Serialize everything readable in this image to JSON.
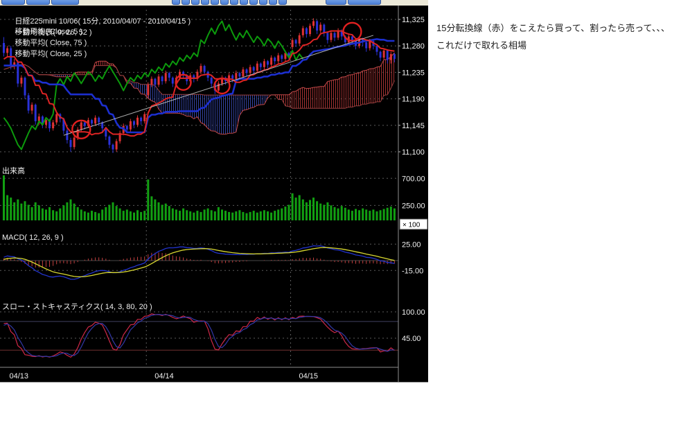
{
  "chart_header": {
    "title": "日経225mini 10/06( 15分, 2010/04/07 - 2010/04/15 )",
    "indicator": "一目均衡表( 9, 26, 52 )",
    "legend": [
      "移動平均( Close, 5 )",
      "移動平均( Close, 75 )",
      "移動平均( Close, 25 )"
    ]
  },
  "note": {
    "line1": "15分転換線（赤）をこえたら買って、割ったら売って、、、",
    "line2": "これだけで取れる相場"
  },
  "chart_data": {
    "type": "candlestick",
    "title": "日経225mini 10/06( 15分, 2010/04/07 - 2010/04/15 )",
    "overlays": [
      "一目均衡表( 9, 26, 52 )",
      "移動平均( Close, 5 )",
      "移動平均( Close, 75 )",
      "移動平均( Close, 25 )"
    ],
    "x_labels": [
      "04/13",
      "04/14",
      "04/15"
    ],
    "price_axis": [
      11325,
      11280,
      11235,
      11190,
      11145,
      11100
    ],
    "history_bars": 26,
    "bars_per_day": [
      41,
      41,
      30
    ],
    "ohlc": [
      [
        11240,
        11248,
        11232,
        11238
      ],
      [
        11238,
        11252,
        11234,
        11248
      ],
      [
        11248,
        11256,
        11240,
        11244
      ],
      [
        11244,
        11258,
        11240,
        11254
      ],
      [
        11254,
        11264,
        11248,
        11258
      ],
      [
        11258,
        11262,
        11244,
        11250
      ],
      [
        11250,
        11256,
        11236,
        11240
      ],
      [
        11240,
        11246,
        11226,
        11230
      ],
      [
        11230,
        11236,
        11216,
        11220
      ],
      [
        11220,
        11226,
        11206,
        11210
      ],
      [
        11210,
        11216,
        11198,
        11205
      ],
      [
        11205,
        11220,
        11200,
        11215
      ],
      [
        11215,
        11230,
        11210,
        11225
      ],
      [
        11225,
        11240,
        11220,
        11235
      ],
      [
        11235,
        11250,
        11230,
        11245
      ],
      [
        11245,
        11250,
        11232,
        11238
      ],
      [
        11238,
        11244,
        11224,
        11230
      ],
      [
        11230,
        11236,
        11218,
        11224
      ],
      [
        11224,
        11240,
        11220,
        11236
      ],
      [
        11236,
        11250,
        11230,
        11246
      ],
      [
        11246,
        11260,
        11240,
        11256
      ],
      [
        11256,
        11262,
        11244,
        11250
      ],
      [
        11250,
        11256,
        11236,
        11242
      ],
      [
        11242,
        11248,
        11228,
        11234
      ],
      [
        11234,
        11250,
        11230,
        11246
      ],
      [
        11246,
        11262,
        11242,
        11256
      ],
      [
        11285,
        11295,
        11262,
        11268
      ],
      [
        11268,
        11280,
        11260,
        11276
      ],
      [
        11276,
        11280,
        11240,
        11246
      ],
      [
        11246,
        11258,
        11240,
        11252
      ],
      [
        11252,
        11256,
        11210,
        11216
      ],
      [
        11216,
        11230,
        11210,
        11226
      ],
      [
        11226,
        11228,
        11190,
        11196
      ],
      [
        11196,
        11200,
        11165,
        11170
      ],
      [
        11170,
        11184,
        11164,
        11180
      ],
      [
        11180,
        11182,
        11146,
        11152
      ],
      [
        11152,
        11165,
        11146,
        11160
      ],
      [
        11160,
        11162,
        11140,
        11146
      ],
      [
        11146,
        11158,
        11140,
        11154
      ],
      [
        11154,
        11156,
        11134,
        11140
      ],
      [
        11140,
        11154,
        11136,
        11150
      ],
      [
        11150,
        11168,
        11146,
        11164
      ],
      [
        11164,
        11166,
        11150,
        11156
      ],
      [
        11156,
        11158,
        11130,
        11136
      ],
      [
        11136,
        11140,
        11114,
        11120
      ],
      [
        11120,
        11124,
        11100,
        11108
      ],
      [
        11108,
        11128,
        11104,
        11124
      ],
      [
        11124,
        11142,
        11120,
        11138
      ],
      [
        11138,
        11154,
        11134,
        11150
      ],
      [
        11150,
        11152,
        11138,
        11144
      ],
      [
        11144,
        11158,
        11140,
        11154
      ],
      [
        11154,
        11156,
        11142,
        11148
      ],
      [
        11148,
        11162,
        11144,
        11158
      ],
      [
        11158,
        11160,
        11144,
        11150
      ],
      [
        11150,
        11152,
        11134,
        11140
      ],
      [
        11140,
        11142,
        11120,
        11126
      ],
      [
        11126,
        11128,
        11106,
        11112
      ],
      [
        11112,
        11114,
        11098,
        11104
      ],
      [
        11104,
        11122,
        11100,
        11118
      ],
      [
        11118,
        11136,
        11114,
        11132
      ],
      [
        11132,
        11148,
        11128,
        11144
      ],
      [
        11144,
        11146,
        11132,
        11138
      ],
      [
        11138,
        11156,
        11134,
        11152
      ],
      [
        11152,
        11154,
        11140,
        11146
      ],
      [
        11146,
        11162,
        11142,
        11158
      ],
      [
        11158,
        11160,
        11146,
        11152
      ],
      [
        11152,
        11168,
        11148,
        11164
      ],
      [
        11196,
        11218,
        11192,
        11214
      ],
      [
        11214,
        11228,
        11210,
        11224
      ],
      [
        11224,
        11226,
        11210,
        11214
      ],
      [
        11214,
        11232,
        11210,
        11228
      ],
      [
        11228,
        11230,
        11214,
        11220
      ],
      [
        11220,
        11238,
        11216,
        11234
      ],
      [
        11234,
        11236,
        11220,
        11226
      ],
      [
        11226,
        11228,
        11210,
        11216
      ],
      [
        11216,
        11230,
        11212,
        11226
      ],
      [
        11226,
        11240,
        11222,
        11236
      ],
      [
        11236,
        11238,
        11224,
        11230
      ],
      [
        11230,
        11232,
        11214,
        11220
      ],
      [
        11220,
        11234,
        11216,
        11230
      ],
      [
        11230,
        11232,
        11218,
        11224
      ],
      [
        11224,
        11240,
        11220,
        11236
      ],
      [
        11236,
        11250,
        11232,
        11246
      ],
      [
        11246,
        11248,
        11230,
        11236
      ],
      [
        11236,
        11238,
        11220,
        11226
      ],
      [
        11226,
        11228,
        11210,
        11216
      ],
      [
        11216,
        11218,
        11198,
        11204
      ],
      [
        11204,
        11220,
        11200,
        11216
      ],
      [
        11216,
        11230,
        11212,
        11226
      ],
      [
        11226,
        11228,
        11214,
        11220
      ],
      [
        11220,
        11234,
        11216,
        11230
      ],
      [
        11230,
        11232,
        11218,
        11224
      ],
      [
        11224,
        11238,
        11220,
        11234
      ],
      [
        11234,
        11236,
        11222,
        11228
      ],
      [
        11228,
        11244,
        11224,
        11240
      ],
      [
        11240,
        11242,
        11228,
        11234
      ],
      [
        11234,
        11248,
        11230,
        11244
      ],
      [
        11244,
        11246,
        11232,
        11238
      ],
      [
        11238,
        11254,
        11234,
        11250
      ],
      [
        11250,
        11252,
        11238,
        11244
      ],
      [
        11244,
        11258,
        11240,
        11254
      ],
      [
        11254,
        11256,
        11242,
        11248
      ],
      [
        11248,
        11264,
        11244,
        11260
      ],
      [
        11260,
        11262,
        11248,
        11254
      ],
      [
        11254,
        11268,
        11250,
        11264
      ],
      [
        11264,
        11266,
        11252,
        11258
      ],
      [
        11258,
        11272,
        11254,
        11268
      ],
      [
        11268,
        11270,
        11256,
        11262
      ],
      [
        11278,
        11294,
        11274,
        11290
      ],
      [
        11290,
        11292,
        11278,
        11284
      ],
      [
        11284,
        11302,
        11280,
        11298
      ],
      [
        11298,
        11314,
        11294,
        11310
      ],
      [
        11310,
        11312,
        11294,
        11300
      ],
      [
        11300,
        11318,
        11296,
        11314
      ],
      [
        11314,
        11327,
        11310,
        11322
      ],
      [
        11322,
        11324,
        11300,
        11306
      ],
      [
        11306,
        11320,
        11302,
        11316
      ],
      [
        11316,
        11318,
        11296,
        11302
      ],
      [
        11302,
        11304,
        11284,
        11290
      ],
      [
        11290,
        11306,
        11286,
        11302
      ],
      [
        11302,
        11304,
        11288,
        11294
      ],
      [
        11294,
        11310,
        11290,
        11306
      ],
      [
        11306,
        11308,
        11290,
        11296
      ],
      [
        11296,
        11298,
        11280,
        11286
      ],
      [
        11286,
        11300,
        11282,
        11296
      ],
      [
        11296,
        11298,
        11284,
        11290
      ],
      [
        11290,
        11292,
        11274,
        11280
      ],
      [
        11280,
        11296,
        11276,
        11292
      ],
      [
        11292,
        11294,
        11280,
        11286
      ],
      [
        11286,
        11288,
        11270,
        11276
      ],
      [
        11276,
        11292,
        11272,
        11288
      ],
      [
        11288,
        11290,
        11274,
        11280
      ],
      [
        11280,
        11282,
        11264,
        11270
      ],
      [
        11270,
        11272,
        11254,
        11260
      ],
      [
        11260,
        11276,
        11256,
        11272
      ],
      [
        11272,
        11274,
        11250,
        11256
      ],
      [
        11256,
        11270,
        11250,
        11266
      ],
      [
        11266,
        11268,
        11252,
        11258
      ]
    ],
    "volume": {
      "label": "出来高",
      "unit_label": "× 100",
      "axis": [
        700,
        250
      ],
      "values": [
        750,
        420,
        380,
        300,
        350,
        280,
        320,
        260,
        220,
        300,
        250,
        200,
        180,
        220,
        170,
        150,
        200,
        250,
        300,
        350,
        280,
        220,
        180,
        150,
        130,
        160,
        140,
        120,
        180,
        220,
        260,
        300,
        240,
        200,
        160,
        180,
        150,
        130,
        170,
        140,
        160,
        680,
        400,
        350,
        300,
        260,
        280,
        240,
        200,
        180,
        160,
        200,
        170,
        150,
        130,
        160,
        140,
        180,
        200,
        170,
        150,
        220,
        180,
        160,
        140,
        130,
        150,
        170,
        140,
        120,
        140,
        160,
        130,
        150,
        170,
        150,
        130,
        160,
        180,
        200,
        230,
        260,
        450,
        380,
        420,
        350,
        300,
        340,
        380,
        320,
        280,
        260,
        300,
        250,
        220,
        200,
        240,
        210,
        180,
        160,
        190,
        170,
        200,
        180,
        160,
        180,
        150,
        170,
        190,
        210,
        230,
        200
      ]
    },
    "macd": {
      "label": "MACD( 12, 26, 9 )",
      "params": [
        12,
        26,
        9
      ],
      "axis": [
        25,
        -15
      ]
    },
    "stochastics": {
      "label": "スロー・ストキャスティクス( 14, 3, 80, 20 )",
      "params": [
        14,
        3,
        80,
        20
      ],
      "axis": [
        100,
        45
      ],
      "levels": [
        80,
        20
      ]
    },
    "annotations": {
      "circles": [
        {
          "i": 22,
          "price": 11138,
          "r": 13
        },
        {
          "i": 51,
          "price": 11218,
          "r": 11
        },
        {
          "i": 62,
          "price": 11212,
          "r": 11
        },
        {
          "i": 99,
          "price": 11304,
          "r": 13
        }
      ],
      "trendline": {
        "i1": 17,
        "p1": 11128,
        "i2": 105,
        "p2": 11298
      }
    },
    "colors": {
      "background": "#000000",
      "text": "#f0f0f0",
      "grid": "#5c5c5c",
      "candle_up": "#e03232",
      "candle_down": "#2a32d8",
      "tenkan": "#dd2424",
      "kijun": "#1c2fd0",
      "chikou": "#0c9a0c",
      "cloud_bull": "#b23636",
      "cloud_bear": "#3a4ab2",
      "senkou_a": "#c34848",
      "senkou_b": "#9a4040",
      "volume": "#12a012",
      "macd_line": "#2233cc",
      "macd_signal": "#d8d830",
      "macd_hist": "#c04040",
      "stoch_k": "#d02848",
      "stoch_d": "#3238a8",
      "annotation": "#e02020"
    }
  }
}
